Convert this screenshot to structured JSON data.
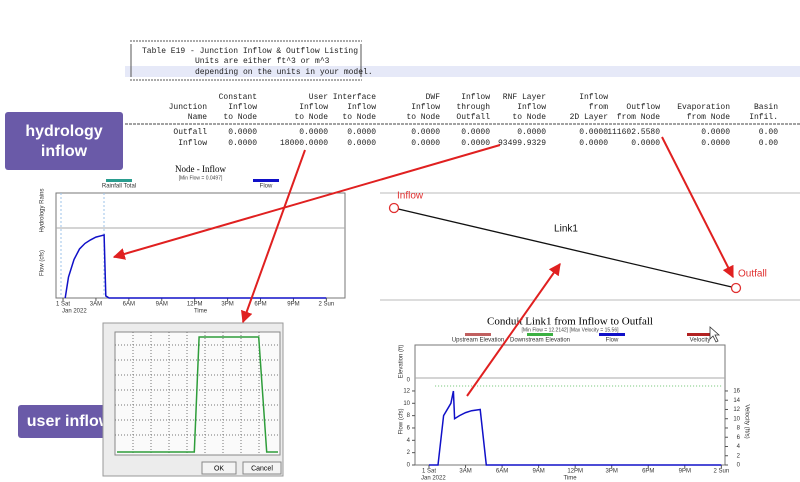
{
  "table": {
    "title_lines": [
      "Table E19 - Junction Inflow & Outflow Listing",
      "Units are either ft^3 or m^3",
      "depending on the units in your model."
    ],
    "columns": [
      [
        "Junction",
        "Name"
      ],
      [
        "Constant",
        "Inflow",
        "to Node"
      ],
      [
        "User",
        "Inflow",
        "to Node"
      ],
      [
        "Interface",
        "Inflow",
        "to Node"
      ],
      [
        "DWF",
        "Inflow",
        "to Node"
      ],
      [
        "Inflow",
        "through",
        "Outfall"
      ],
      [
        "RNF Layer",
        "Inflow",
        "to Node"
      ],
      [
        "Inflow",
        "from",
        "2D Layer"
      ],
      [
        "Outflow",
        "from Node"
      ],
      [
        "Evaporation",
        "from Node"
      ],
      [
        "Basin",
        "Infil."
      ]
    ],
    "rows": [
      [
        "Outfall",
        "0.0000",
        "0.0000",
        "0.0000",
        "0.0000",
        "0.0000",
        "0.0000",
        "0.0000",
        "111602.5580",
        "0.0000",
        "0.00"
      ],
      [
        "Inflow",
        "0.0000",
        "18000.0000",
        "0.0000",
        "0.0000",
        "0.0000",
        "93499.9329",
        "0.0000",
        "0.0000",
        "0.0000",
        "0.00"
      ]
    ]
  },
  "labels": {
    "hydrology": [
      "hydrology",
      "inflow"
    ],
    "user": "user inflow"
  },
  "diagram": {
    "nodes": [
      "Inflow",
      "Outfall"
    ],
    "link": "Link1"
  },
  "charts": [
    {
      "type": "line",
      "title": "Node - Inflow",
      "subtitle": "[Min Flow = 0.0497]",
      "xlabel": "Time",
      "xsublabel": "Jan 2022",
      "ylabel": "Flow (cfs)",
      "ylabel_top": "Hydrology Rains",
      "x": [
        0.2,
        0.5,
        1,
        1.5,
        2,
        2.5,
        3,
        3.5,
        3.74,
        3.9,
        4.2,
        24
      ],
      "series": [
        {
          "name": "Rainfall Total",
          "color": "#2a9d8f",
          "values": [
            null,
            null,
            null,
            null,
            null,
            null,
            null,
            null,
            null,
            null,
            null,
            null
          ]
        },
        {
          "name": "Flow",
          "color": "#1010c8",
          "values": [
            0,
            3,
            5.5,
            7,
            7.8,
            8.3,
            8.7,
            8.9,
            9,
            0.3,
            0,
            0
          ]
        }
      ],
      "xlim": [
        -0.64,
        25.7
      ],
      "ylim": [
        0,
        10
      ],
      "xticks": [
        {
          "value": 0,
          "label": "1 Sat"
        },
        {
          "value": 3,
          "label": "3AM"
        },
        {
          "value": 6,
          "label": "6AM"
        },
        {
          "value": 9,
          "label": "9AM"
        },
        {
          "value": 12,
          "label": "12PM"
        },
        {
          "value": 15,
          "label": "3PM"
        },
        {
          "value": 18,
          "label": "6PM"
        },
        {
          "value": 21,
          "label": "9PM"
        },
        {
          "value": 24,
          "label": "2 Sun"
        }
      ]
    },
    {
      "type": "line",
      "title": "Conduit Link1 from Inflow to Outfall",
      "subtitle": "[Min Flow = 12.2142] [Max Velocity = 15.56]",
      "xlabel": "Time",
      "xsublabel": "Jan 2022",
      "ylabel": "Flow (cfs)",
      "ylabel_top": "Elevation (ft)",
      "y2label": "Velocity (ft/s)",
      "x": [
        0,
        0.5,
        0.74,
        1.2,
        1.8,
        2,
        2.1,
        2.5,
        3,
        3.5,
        4.2,
        4.7,
        5,
        24
      ],
      "series": [
        {
          "name": "Upstream Elevation",
          "color": "#c06060",
          "values": [
            null,
            null,
            null,
            null,
            null,
            null,
            null,
            null,
            null,
            null,
            null,
            null,
            null,
            null
          ]
        },
        {
          "name": "Downstream Elevation",
          "color": "#3cb043",
          "values": [
            null,
            12.8,
            12.8,
            12.8,
            12.8,
            12.8,
            12.8,
            12.8,
            12.8,
            12.8,
            12.8,
            12.8,
            12.8,
            12.8
          ]
        },
        {
          "name": "Flow",
          "color": "#1010c8",
          "values": [
            0,
            0,
            0,
            8,
            10,
            12,
            7.5,
            8,
            8.5,
            8.8,
            9,
            0,
            0,
            0
          ]
        },
        {
          "name": "Velocity",
          "color": "#b22222",
          "axis": "y2",
          "values": [
            null,
            null,
            null,
            null,
            null,
            null,
            null,
            null,
            null,
            null,
            null,
            null,
            null,
            null
          ]
        }
      ],
      "xlim": [
        -1.15,
        24.3
      ],
      "ylim": [
        0,
        14.1
      ],
      "y2lim": [
        0,
        18.8
      ],
      "yticks": [
        0,
        2,
        4,
        6,
        8,
        10,
        12
      ],
      "y2ticks": [
        0,
        2,
        4,
        6,
        8,
        10,
        12,
        14,
        16
      ],
      "elev_yticks": [
        0
      ],
      "xticks": [
        {
          "value": 0,
          "label": "1 Sat"
        },
        {
          "value": 3,
          "label": "3AM"
        },
        {
          "value": 6,
          "label": "6AM"
        },
        {
          "value": 9,
          "label": "9AM"
        },
        {
          "value": 12,
          "label": "12PM"
        },
        {
          "value": 15,
          "label": "3PM"
        },
        {
          "value": 18,
          "label": "6PM"
        },
        {
          "value": 21,
          "label": "9PM"
        },
        {
          "value": 24,
          "label": "2 Sun"
        }
      ]
    },
    {
      "type": "line",
      "x": [
        0,
        4.8,
        5.1,
        8.8,
        9.3,
        10
      ],
      "series": [
        {
          "color": "#2e9d3a",
          "values": [
            0,
            0,
            10,
            10,
            0,
            0
          ]
        }
      ],
      "xlim": [
        0,
        10
      ],
      "ylim": [
        0,
        10
      ]
    }
  ],
  "dialog": {
    "buttons": [
      "OK",
      "Cancel"
    ]
  }
}
